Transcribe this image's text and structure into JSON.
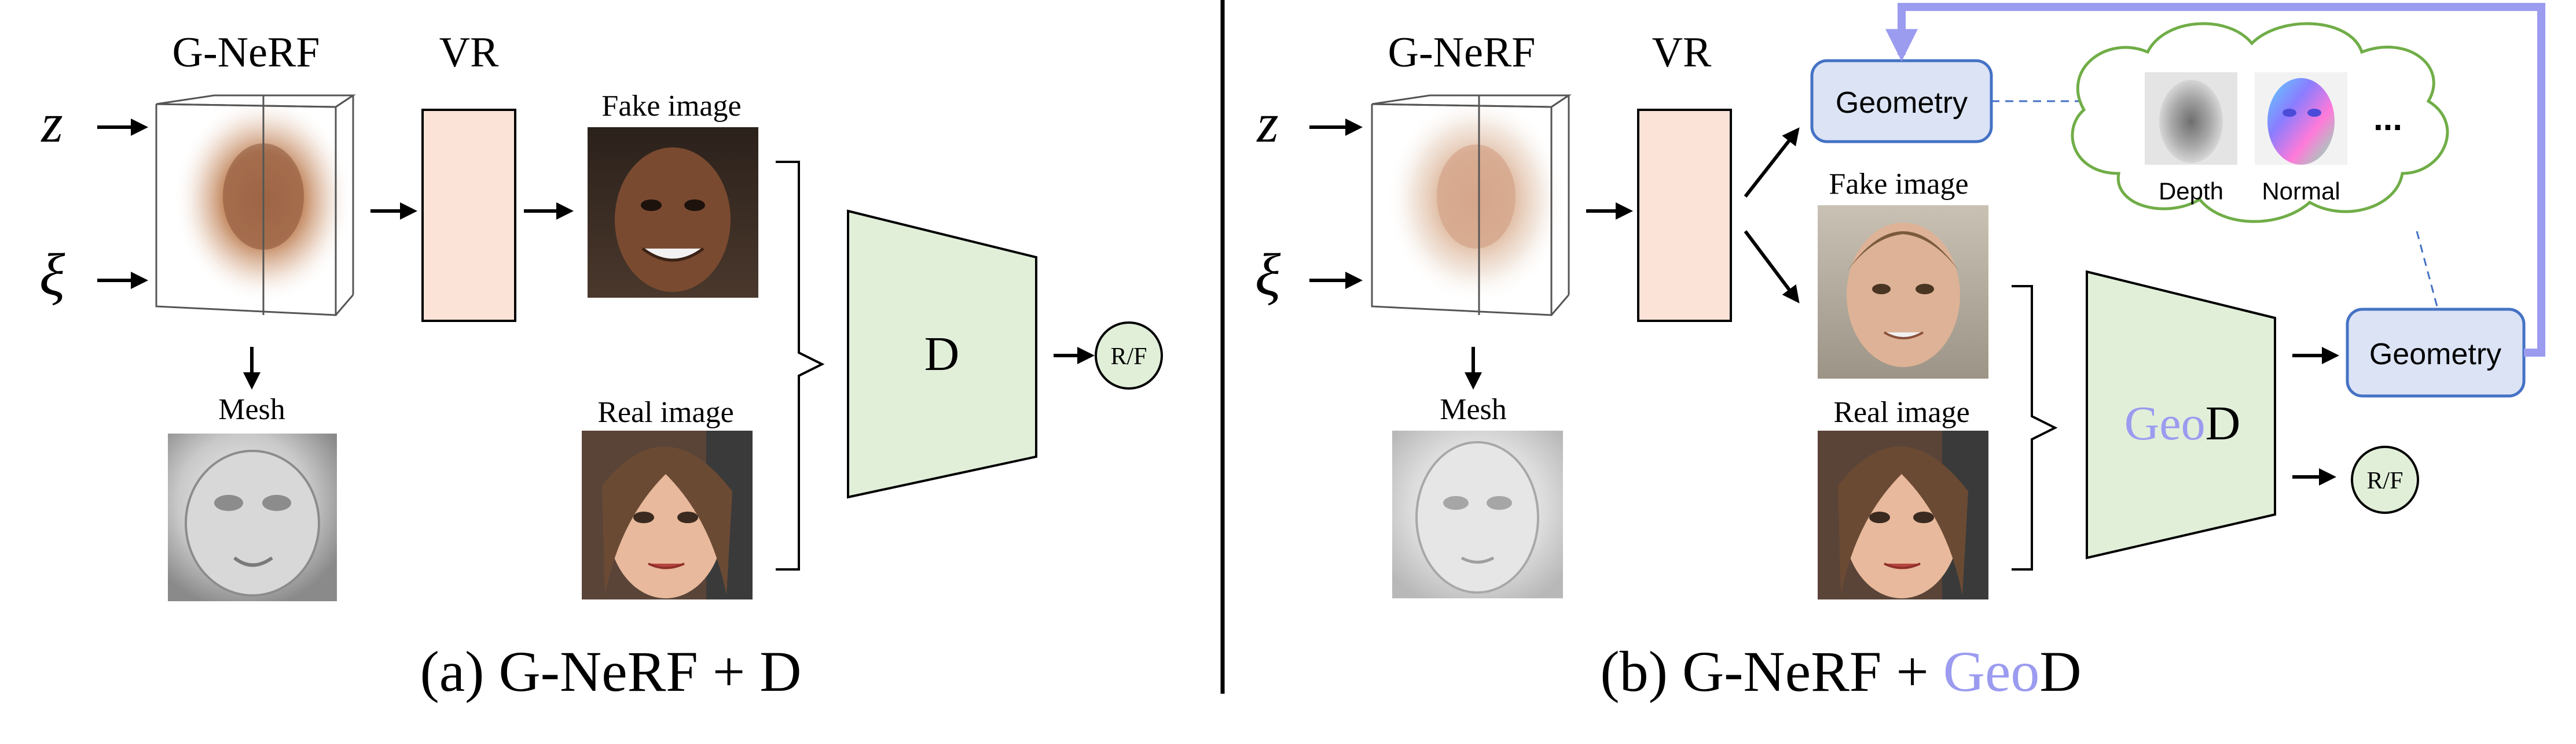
{
  "colors": {
    "geo_accent": "#9b9bf0",
    "vr_fill": "#fbe3d8",
    "disc_fill": "#e1efd9",
    "geometry_fill": "#dbe3f5",
    "geometry_stroke": "#4472c4",
    "cloud_stroke": "#70ad47",
    "arrow": "#000000"
  },
  "panel_a": {
    "gnerf_title": "G-NeRF",
    "vr_title": "VR",
    "input_z": "z",
    "input_xi": "ξ",
    "mesh_label": "Mesh",
    "fake_label": "Fake image",
    "real_label": "Real image",
    "disc_label": "D",
    "rf_label": "R/F",
    "caption_prefix": "(a) G-NeRF + ",
    "caption_suffix": "D"
  },
  "panel_b": {
    "gnerf_title": "G-NeRF",
    "vr_title": "VR",
    "input_z": "z",
    "input_xi": "ξ",
    "mesh_label": "Mesh",
    "fake_label": "Fake image",
    "real_label": "Real image",
    "disc_geo": "Geo",
    "disc_d": "D",
    "rf_label": "R/F",
    "geometry_top": "Geometry",
    "geometry_right": "Geometry",
    "depth_label": "Depth",
    "normal_label": "Normal",
    "ellipsis": "...",
    "caption_prefix": "(b) G-NeRF + ",
    "caption_geo": "Geo",
    "caption_suffix": "D"
  }
}
